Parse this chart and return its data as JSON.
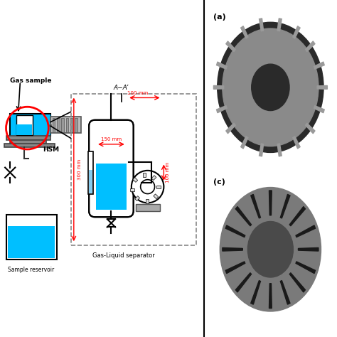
{
  "bg_color": "#ffffff",
  "gas_sample_text": "Gas sample",
  "hsm_text": "HSM",
  "sample_reservoir_text": "Sample reservoir",
  "gas_liquid_separator_text": "Gas-Liquid separator",
  "aa_prime_text": "A−A’",
  "dim_150mm": "150 mm",
  "dim_100mm_top": "100 mm",
  "dim_100mm_right": "100 mm",
  "dim_300mm": "300 mm",
  "label_a": "(a)",
  "label_c": "(c)",
  "cyan_color": "#00BFFF",
  "red_color": "#FF0000",
  "dark_cyan": "#0077AA",
  "gray_color": "#888888",
  "black": "#000000"
}
